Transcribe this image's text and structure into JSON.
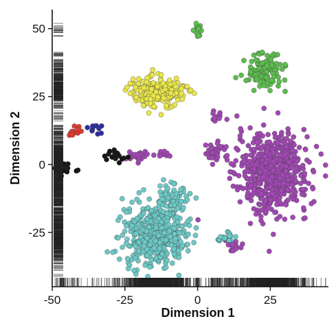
{
  "chart_data": {
    "type": "scatter",
    "xlabel": "Dimension 1",
    "ylabel": "Dimension 2",
    "xlim": [
      -50,
      45
    ],
    "ylim": [
      -45,
      57
    ],
    "xticks": [
      -50,
      -25,
      0,
      25
    ],
    "yticks": [
      50,
      25,
      0,
      -25
    ],
    "grid": false,
    "legend": "none",
    "marginal_rugs": [
      "left",
      "bottom"
    ],
    "colors": {
      "purple": "#a148b3",
      "teal": "#6cc9c6",
      "yellow": "#e9e64a",
      "green": "#5dbd4f",
      "red": "#e23b2e",
      "blue": "#2f2ea0",
      "black": "#151515"
    },
    "clusters": [
      {
        "color_key": "purple",
        "center": [
          26,
          -3
        ],
        "spread": [
          11,
          13
        ],
        "count": 620
      },
      {
        "color_key": "teal",
        "center": [
          -15,
          -26
        ],
        "spread": [
          10,
          10
        ],
        "count": 430
      },
      {
        "color_key": "teal",
        "center": [
          -8,
          -12
        ],
        "spread": [
          5,
          5
        ],
        "count": 60
      },
      {
        "color_key": "yellow",
        "center": [
          -14,
          27
        ],
        "spread": [
          8,
          5
        ],
        "count": 230
      },
      {
        "color_key": "green",
        "center": [
          23,
          34
        ],
        "spread": [
          7,
          6
        ],
        "count": 120
      },
      {
        "color_key": "green",
        "center": [
          0,
          49
        ],
        "spread": [
          1.5,
          2.5
        ],
        "count": 20
      },
      {
        "color_key": "purple",
        "center": [
          7,
          5
        ],
        "spread": [
          4,
          3
        ],
        "count": 40
      },
      {
        "color_key": "purple",
        "center": [
          -21,
          3
        ],
        "spread": [
          3,
          2
        ],
        "count": 25
      },
      {
        "color_key": "purple",
        "center": [
          -12,
          4
        ],
        "spread": [
          4,
          1
        ],
        "count": 10
      },
      {
        "color_key": "purple",
        "center": [
          7,
          18
        ],
        "spread": [
          2,
          2
        ],
        "count": 12
      },
      {
        "color_key": "teal",
        "center": [
          10,
          -27
        ],
        "spread": [
          3,
          1.5
        ],
        "count": 22
      },
      {
        "color_key": "purple",
        "center": [
          13,
          -30
        ],
        "spread": [
          2,
          2
        ],
        "count": 12
      },
      {
        "color_key": "black",
        "center": [
          -46,
          -1
        ],
        "spread": [
          3,
          2
        ],
        "count": 35
      },
      {
        "color_key": "black",
        "center": [
          -28,
          3
        ],
        "spread": [
          4,
          2
        ],
        "count": 18
      },
      {
        "color_key": "red",
        "center": [
          -42,
          12
        ],
        "spread": [
          2,
          2
        ],
        "count": 14
      },
      {
        "color_key": "blue",
        "center": [
          -35,
          13
        ],
        "spread": [
          2,
          1.5
        ],
        "count": 10
      }
    ]
  }
}
